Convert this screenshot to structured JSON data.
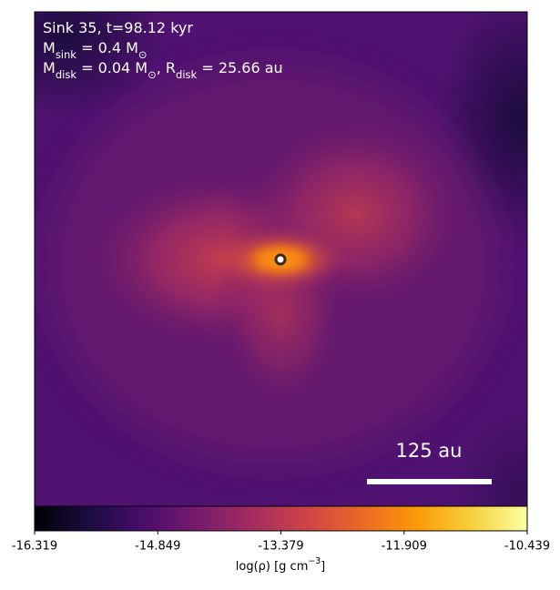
{
  "chart_data": {
    "type": "density-map",
    "annotations": [
      [
        {
          "text": "Sink 35, t=98.12 kyr"
        }
      ],
      [
        {
          "text": "M"
        },
        {
          "sub": "sink"
        },
        {
          "text": " = 0.4 M"
        },
        {
          "sub": "⊙"
        }
      ],
      [
        {
          "text": "M"
        },
        {
          "sub": "disk"
        },
        {
          "text": " = 0.04 M"
        },
        {
          "sub": "⊙"
        },
        {
          "text": ", R"
        },
        {
          "sub": "disk"
        },
        {
          "text": " = 25.66 au"
        }
      ]
    ],
    "scale_bar_label": "125 au",
    "colorbar": {
      "label": [
        {
          "text": "log(ρ) [g cm"
        },
        {
          "sup": "−3"
        },
        {
          "text": "]"
        }
      ],
      "colormap": "inferno",
      "clim": [
        -16.319,
        -10.439
      ],
      "ticks": [
        -16.319,
        -14.849,
        -13.379,
        -11.909,
        -10.439
      ]
    }
  }
}
